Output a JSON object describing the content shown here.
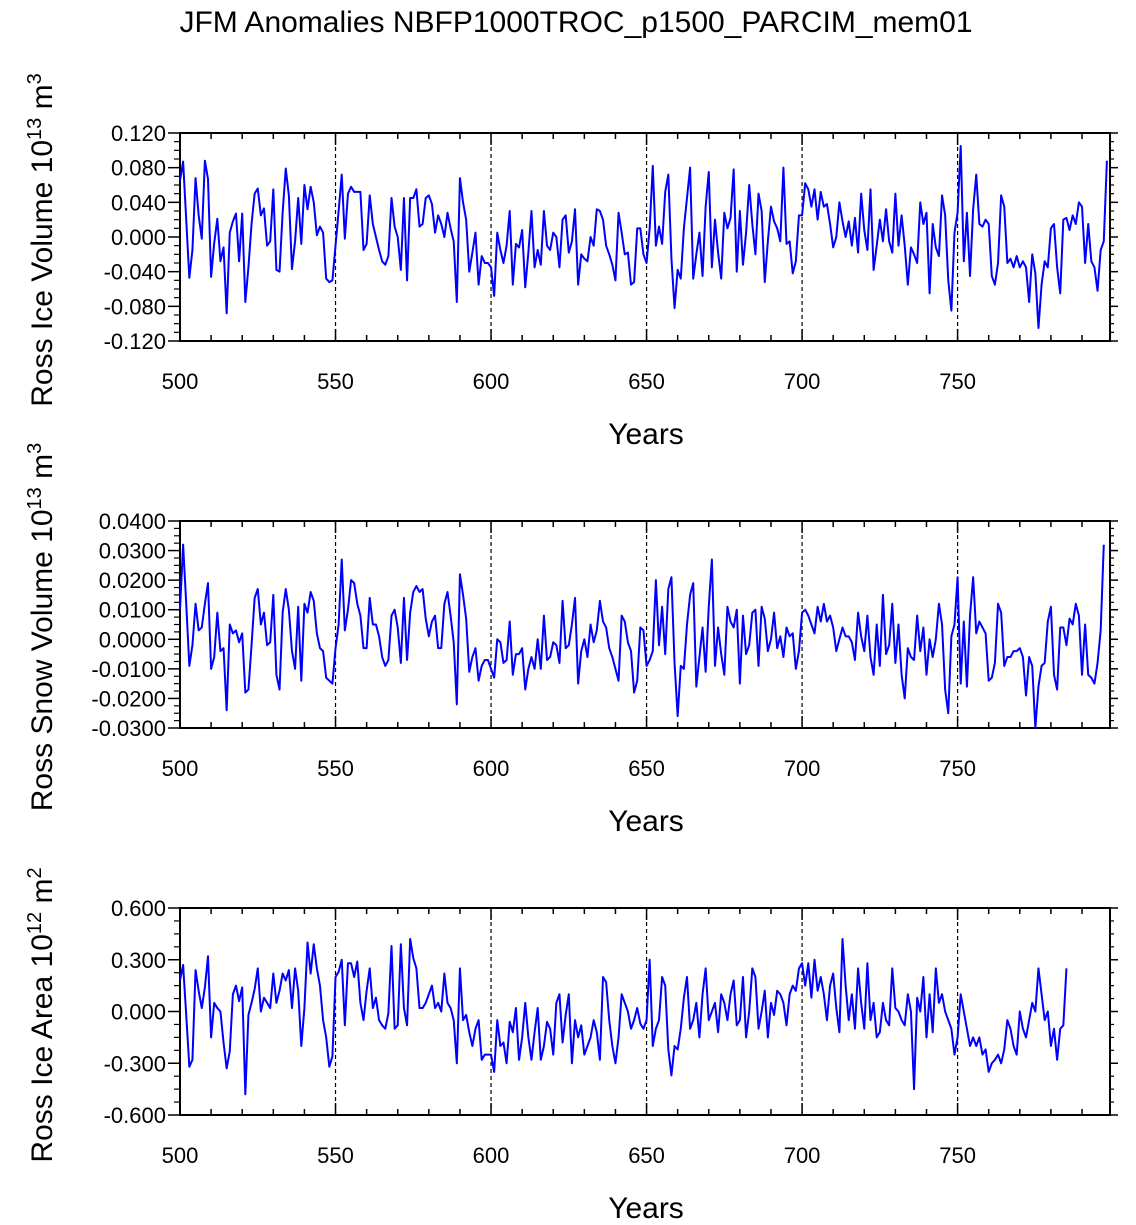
{
  "title": "JFM Anomalies NBFP1000TROC_p1500_PARCIM_mem01",
  "colors": {
    "line": "#0000ff",
    "axis": "#000000",
    "background": "#ffffff"
  },
  "chart_data": [
    {
      "type": "line",
      "ylabel_main": "Ross Ice Volume 10",
      "ylabel_exp": "13",
      "ylabel_unit": " m",
      "ylabel_unit_exp": "3",
      "xlabel": "Years",
      "xlim": [
        500,
        799
      ],
      "ylim": [
        -0.12,
        0.12
      ],
      "yticks": [
        "0.120",
        "0.080",
        "0.040",
        "0.000",
        "-0.040",
        "-0.080",
        "-0.120"
      ],
      "ytick_values": [
        0.12,
        0.08,
        0.04,
        0.0,
        -0.04,
        -0.08,
        -0.12
      ],
      "xticks": [
        "500",
        "550",
        "600",
        "650",
        "700",
        "750"
      ],
      "xtick_values": [
        500,
        550,
        600,
        650,
        700,
        750
      ],
      "vlines": [
        550,
        600,
        650,
        700,
        750
      ],
      "series": [
        {
          "name": "Ross Ice Volume",
          "start": 500,
          "values": [
            0.065,
            0.087,
            0.02,
            -0.047,
            -0.015,
            0.068,
            0.025,
            -0.002,
            0.088,
            0.067,
            -0.046,
            -0.007,
            0.021,
            -0.028,
            -0.012,
            -0.088,
            0.005,
            0.018,
            0.027,
            -0.028,
            0.027,
            -0.075,
            -0.035,
            0.015,
            0.05,
            0.056,
            0.025,
            0.033,
            -0.01,
            -0.005,
            0.055,
            -0.038,
            -0.04,
            0.028,
            0.079,
            0.048,
            -0.037,
            -0.005,
            0.045,
            -0.008,
            0.06,
            0.032,
            0.058,
            0.04,
            0.002,
            0.012,
            0.005,
            -0.048,
            -0.052,
            -0.05,
            -0.01,
            0.03,
            0.072,
            -0.002,
            0.05,
            0.058,
            0.052,
            0.052,
            0.052,
            -0.015,
            -0.008,
            0.048,
            0.015,
            0.0,
            -0.015,
            -0.028,
            -0.032,
            -0.022,
            0.045,
            0.012,
            0.0,
            -0.038,
            0.045,
            -0.05,
            0.045,
            0.045,
            0.055,
            0.012,
            0.015,
            0.045,
            0.048,
            0.038,
            0.005,
            0.025,
            0.015,
            0.0,
            0.028,
            0.01,
            -0.005,
            -0.075,
            0.068,
            0.04,
            0.02,
            -0.04,
            -0.018,
            0.005,
            -0.055,
            -0.022,
            -0.03,
            -0.03,
            -0.035,
            -0.068,
            0.005,
            -0.015,
            -0.03,
            -0.01,
            0.03,
            -0.055,
            -0.008,
            -0.012,
            0.008,
            -0.058,
            -0.018,
            0.03,
            -0.035,
            -0.015,
            -0.032,
            0.03,
            -0.01,
            -0.015,
            0.005,
            0.0,
            -0.035,
            0.02,
            0.025,
            -0.018,
            -0.005,
            0.032,
            -0.055,
            -0.02,
            -0.025,
            -0.028,
            0.0,
            -0.01,
            0.032,
            0.03,
            0.02,
            -0.01,
            -0.02,
            -0.032,
            -0.05,
            0.028,
            0.005,
            -0.02,
            -0.018,
            -0.055,
            -0.052,
            0.01,
            0.01,
            -0.02,
            -0.03,
            0.01,
            0.082,
            -0.01,
            0.012,
            -0.008,
            0.052,
            0.072,
            -0.025,
            -0.082,
            -0.038,
            -0.048,
            0.01,
            0.045,
            0.08,
            -0.048,
            -0.02,
            0.005,
            -0.045,
            0.035,
            0.075,
            -0.035,
            0.02,
            -0.018,
            -0.048,
            0.028,
            0.01,
            0.022,
            0.078,
            -0.04,
            0.03,
            -0.032,
            0.005,
            0.06,
            0.015,
            -0.02,
            0.05,
            0.03,
            -0.052,
            -0.005,
            0.035,
            0.018,
            0.01,
            -0.005,
            0.08,
            -0.008,
            -0.005,
            -0.042,
            -0.028,
            0.025,
            0.025,
            0.062,
            0.055,
            0.035,
            0.055,
            0.02,
            0.052,
            0.035,
            0.038,
            0.015,
            -0.012,
            0.0,
            0.04,
            0.018,
            0.0,
            0.018,
            -0.01,
            0.022,
            -0.018,
            0.05,
            0.008,
            -0.015,
            0.055,
            -0.038,
            -0.01,
            0.02,
            -0.005,
            0.032,
            -0.005,
            -0.018,
            0.05,
            -0.01,
            0.025,
            -0.01,
            -0.055,
            -0.012,
            -0.02,
            -0.03,
            0.04,
            0.015,
            0.028,
            -0.065,
            0.015,
            -0.012,
            -0.022,
            0.048,
            0.025,
            -0.05,
            -0.085,
            0.005,
            0.028,
            0.105,
            -0.028,
            0.028,
            -0.045,
            0.032,
            0.072,
            0.015,
            0.012,
            0.02,
            0.015,
            -0.045,
            -0.055,
            -0.03,
            0.048,
            0.035,
            -0.03,
            -0.025,
            -0.035,
            -0.022,
            -0.035,
            -0.028,
            -0.035,
            -0.075,
            -0.02,
            -0.042,
            -0.105,
            -0.055,
            -0.028,
            -0.035,
            0.01,
            0.015,
            -0.035,
            -0.065,
            0.02,
            0.022,
            0.008,
            0.025,
            0.015,
            0.04,
            0.035,
            -0.03,
            0.015,
            -0.028,
            -0.035,
            -0.062,
            -0.015,
            -0.005,
            0.088
          ]
        }
      ]
    },
    {
      "type": "line",
      "ylabel_main": "Ross Snow Volume 10",
      "ylabel_exp": "13",
      "ylabel_unit": " m",
      "ylabel_unit_exp": "3",
      "xlabel": "Years",
      "xlim": [
        500,
        799
      ],
      "ylim": [
        -0.03,
        0.04
      ],
      "yticks": [
        "0.0400",
        "0.0300",
        "0.0200",
        "0.0100",
        "0.0000",
        "-0.0100",
        "-0.0200",
        "-0.0300"
      ],
      "ytick_values": [
        0.04,
        0.03,
        0.02,
        0.01,
        0.0,
        -0.01,
        -0.02,
        -0.03
      ],
      "xticks": [
        "500",
        "550",
        "600",
        "650",
        "700",
        "750"
      ],
      "xtick_values": [
        500,
        550,
        600,
        650,
        700,
        750
      ],
      "vlines": [
        550,
        600,
        650,
        700,
        750
      ],
      "series": [
        {
          "name": "Ross Snow Volume",
          "start": 500,
          "values": [
            0.01,
            0.032,
            0.012,
            -0.009,
            -0.002,
            0.012,
            0.003,
            0.004,
            0.012,
            0.019,
            -0.01,
            -0.006,
            0.009,
            -0.004,
            -0.003,
            -0.024,
            0.005,
            0.002,
            0.003,
            -0.001,
            0.002,
            -0.018,
            -0.017,
            -0.002,
            0.014,
            0.017,
            0.005,
            0.009,
            -0.002,
            -0.001,
            0.015,
            -0.012,
            -0.017,
            0.009,
            0.017,
            0.01,
            -0.004,
            -0.01,
            0.011,
            -0.014,
            0.012,
            0.009,
            0.016,
            0.013,
            0.002,
            -0.003,
            -0.004,
            -0.013,
            -0.014,
            -0.015,
            -0.003,
            0.005,
            0.027,
            0.003,
            0.01,
            0.02,
            0.019,
            0.012,
            0.008,
            -0.003,
            -0.003,
            0.014,
            0.005,
            0.005,
            0.001,
            -0.006,
            -0.009,
            -0.007,
            0.008,
            0.01,
            0.004,
            -0.008,
            0.014,
            -0.007,
            0.009,
            0.016,
            0.018,
            0.016,
            0.017,
            0.007,
            0.001,
            0.006,
            0.008,
            -0.003,
            -0.003,
            0.012,
            0.016,
            0.008,
            -0.001,
            -0.022,
            0.022,
            0.015,
            0.007,
            -0.011,
            -0.006,
            -0.003,
            -0.014,
            -0.009,
            -0.007,
            -0.007,
            -0.01,
            -0.013,
            0.0,
            -0.001,
            -0.008,
            -0.007,
            0.006,
            -0.012,
            -0.005,
            -0.005,
            -0.003,
            -0.017,
            -0.01,
            -0.006,
            -0.01,
            0.0,
            -0.01,
            0.008,
            -0.007,
            -0.006,
            -0.001,
            -0.002,
            -0.008,
            0.013,
            -0.003,
            -0.002,
            0.005,
            0.014,
            -0.015,
            -0.004,
            0.0,
            -0.006,
            0.005,
            -0.001,
            0.003,
            0.013,
            0.006,
            0.004,
            -0.003,
            -0.006,
            -0.01,
            -0.014,
            0.008,
            0.006,
            -0.001,
            -0.004,
            -0.018,
            -0.014,
            0.004,
            0.003,
            -0.009,
            -0.007,
            -0.004,
            0.02,
            -0.002,
            0.011,
            -0.005,
            0.017,
            0.021,
            -0.008,
            -0.026,
            -0.009,
            -0.01,
            0.005,
            0.015,
            0.019,
            -0.016,
            -0.006,
            0.004,
            -0.011,
            0.011,
            0.027,
            -0.009,
            0.004,
            -0.005,
            -0.012,
            0.011,
            0.006,
            0.004,
            0.01,
            -0.015,
            0.008,
            -0.005,
            -0.002,
            0.009,
            0.01,
            -0.009,
            0.011,
            0.007,
            -0.004,
            0.0,
            0.009,
            -0.003,
            0.001,
            -0.006,
            0.004,
            0.001,
            0.002,
            -0.01,
            -0.004,
            0.009,
            0.01,
            0.008,
            0.005,
            0.002,
            0.011,
            0.006,
            0.012,
            0.006,
            0.008,
            0.004,
            -0.004,
            0.0,
            0.004,
            0.001,
            0.001,
            -0.001,
            -0.007,
            0.009,
            0.001,
            -0.004,
            0.008,
            -0.006,
            -0.012,
            0.005,
            -0.009,
            0.015,
            -0.005,
            -0.002,
            0.012,
            -0.008,
            0.005,
            -0.012,
            -0.02,
            -0.003,
            -0.006,
            -0.007,
            0.008,
            -0.004,
            0.004,
            -0.012,
            0.0,
            -0.006,
            0.0,
            0.012,
            0.005,
            -0.017,
            -0.025,
            0.001,
            0.005,
            0.021,
            -0.015,
            0.006,
            -0.016,
            0.008,
            0.021,
            0.002,
            0.006,
            0.004,
            0.002,
            -0.014,
            -0.013,
            -0.008,
            0.012,
            0.009,
            -0.009,
            -0.006,
            -0.006,
            -0.004,
            -0.004,
            -0.003,
            -0.006,
            -0.019,
            -0.006,
            -0.009,
            -0.03,
            -0.016,
            -0.009,
            -0.008,
            0.006,
            0.011,
            -0.012,
            -0.017,
            0.004,
            0.004,
            -0.002,
            0.007,
            0.005,
            0.012,
            0.008,
            -0.012,
            0.005,
            -0.012,
            -0.013,
            -0.015,
            -0.008,
            0.003,
            0.032
          ]
        }
      ]
    },
    {
      "type": "line",
      "ylabel_main": "Ross Ice Area 10",
      "ylabel_exp": "12",
      "ylabel_unit": " m",
      "ylabel_unit_exp": "2",
      "xlabel": "Years",
      "xlim": [
        500,
        799
      ],
      "ylim": [
        -0.6,
        0.6
      ],
      "yticks": [
        "0.600",
        "0.300",
        "0.000",
        "-0.300",
        "-0.600"
      ],
      "ytick_values": [
        0.6,
        0.3,
        0.0,
        -0.3,
        -0.6
      ],
      "xticks": [
        "500",
        "550",
        "600",
        "650",
        "700",
        "750"
      ],
      "xtick_values": [
        500,
        550,
        600,
        650,
        700,
        750
      ],
      "vlines": [
        550,
        600,
        650,
        700,
        750
      ],
      "series": [
        {
          "name": "Ross Ice Area",
          "start": 500,
          "values": [
            0.18,
            0.27,
            -0.02,
            -0.32,
            -0.28,
            0.24,
            0.12,
            0.02,
            0.14,
            0.32,
            -0.15,
            0.05,
            0.02,
            0.0,
            -0.18,
            -0.33,
            -0.23,
            0.1,
            0.15,
            0.06,
            0.14,
            -0.48,
            -0.02,
            0.05,
            0.13,
            0.25,
            0.0,
            0.08,
            0.05,
            0.02,
            0.22,
            0.05,
            0.12,
            0.22,
            0.18,
            0.24,
            0.02,
            0.25,
            0.12,
            -0.2,
            0.02,
            0.4,
            0.22,
            0.39,
            0.25,
            0.15,
            -0.05,
            -0.15,
            -0.32,
            -0.26,
            0.2,
            0.23,
            0.3,
            -0.08,
            0.28,
            0.28,
            0.2,
            0.29,
            0.05,
            -0.05,
            0.12,
            0.25,
            0.02,
            0.08,
            -0.05,
            -0.08,
            -0.1,
            -0.01,
            0.38,
            -0.1,
            -0.08,
            0.39,
            0.02,
            -0.08,
            0.42,
            0.31,
            0.25,
            0.02,
            0.02,
            0.05,
            0.1,
            0.15,
            0.02,
            0.05,
            0.0,
            0.22,
            0.05,
            0.02,
            -0.05,
            -0.3,
            0.25,
            -0.05,
            -0.02,
            -0.12,
            -0.2,
            -0.1,
            -0.05,
            -0.28,
            -0.25,
            -0.25,
            -0.25,
            -0.35,
            -0.05,
            -0.2,
            -0.18,
            -0.3,
            -0.06,
            -0.12,
            0.02,
            -0.28,
            -0.15,
            0.05,
            -0.15,
            -0.28,
            -0.12,
            0.02,
            -0.28,
            -0.2,
            -0.06,
            -0.1,
            -0.25,
            0.05,
            0.1,
            -0.18,
            -0.02,
            0.1,
            -0.3,
            -0.05,
            -0.15,
            -0.08,
            -0.25,
            -0.2,
            -0.15,
            -0.05,
            -0.12,
            -0.28,
            0.2,
            0.17,
            -0.05,
            -0.2,
            -0.3,
            -0.15,
            0.1,
            0.05,
            0.0,
            -0.1,
            -0.05,
            0.02,
            -0.07,
            -0.1,
            -0.05,
            0.3,
            -0.2,
            -0.1,
            -0.05,
            0.2,
            0.15,
            -0.22,
            -0.37,
            -0.2,
            -0.22,
            -0.1,
            0.08,
            0.2,
            -0.1,
            -0.05,
            0.05,
            -0.15,
            0.1,
            0.25,
            -0.05,
            0.0,
            0.05,
            -0.12,
            0.1,
            0.05,
            -0.05,
            0.1,
            0.18,
            -0.08,
            -0.05,
            0.2,
            -0.15,
            0.0,
            0.25,
            0.2,
            -0.1,
            0.0,
            0.12,
            -0.15,
            0.05,
            -0.02,
            0.12,
            0.1,
            0.05,
            -0.08,
            0.1,
            0.15,
            0.12,
            0.25,
            0.28,
            0.15,
            0.28,
            0.08,
            0.3,
            0.12,
            0.2,
            0.1,
            -0.05,
            0.15,
            0.22,
            0.02,
            -0.12,
            0.42,
            0.15,
            -0.05,
            0.1,
            -0.1,
            0.25,
            0.05,
            -0.1,
            0.28,
            -0.05,
            0.05,
            -0.15,
            -0.12,
            0.05,
            -0.05,
            -0.08,
            0.25,
            0.02,
            0.0,
            -0.05,
            -0.08,
            0.1,
            0.0,
            -0.45,
            0.08,
            0.0,
            0.2,
            -0.15,
            0.1,
            -0.12,
            0.25,
            0.05,
            0.1,
            0.0,
            -0.05,
            -0.1,
            -0.25,
            -0.15,
            0.1,
            0.0,
            -0.1,
            -0.2,
            -0.15,
            -0.2,
            -0.15,
            -0.25,
            -0.22,
            -0.35,
            -0.3,
            -0.28,
            -0.25,
            -0.3,
            -0.22,
            -0.05,
            -0.1,
            -0.2,
            -0.25,
            0.0,
            -0.1,
            -0.15,
            -0.05,
            0.05,
            0.0,
            0.25,
            0.1,
            -0.05,
            0.0,
            -0.2,
            -0.1,
            -0.28,
            -0.1,
            -0.08,
            0.25
          ]
        }
      ]
    }
  ]
}
